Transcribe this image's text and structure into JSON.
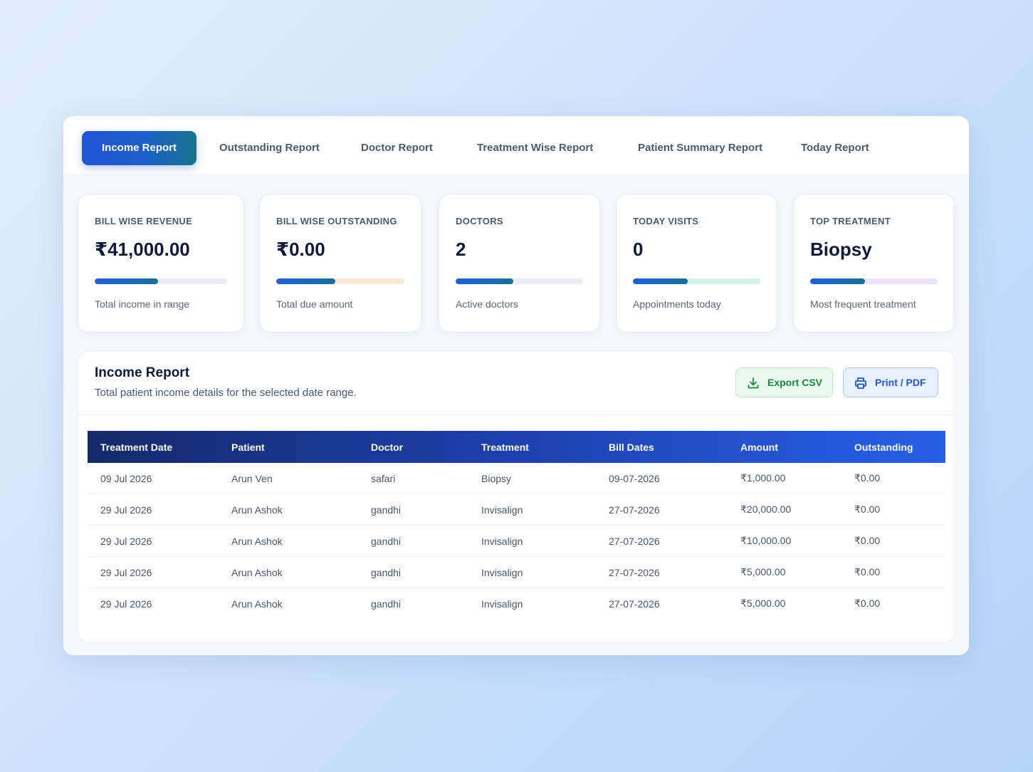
{
  "tabs": [
    {
      "label": "Income Report",
      "active": true
    },
    {
      "label": "Outstanding Report"
    },
    {
      "label": "Doctor Report"
    },
    {
      "label": "Treatment Wise Report"
    },
    {
      "label": "Patient Summary Report"
    },
    {
      "label": "Today Report"
    }
  ],
  "cards": [
    {
      "label": "BILL WISE REVENUE",
      "value": "₹41,000.00",
      "progress": 0.48,
      "track_color": "#e9edf3",
      "desc": "Total income in range"
    },
    {
      "label": "BILL WISE OUTSTANDING",
      "value": "₹0.00",
      "progress": 0.46,
      "track_color": "#fde7d6",
      "desc": "Total due amount"
    },
    {
      "label": "DOCTORS",
      "value": "2",
      "progress": 0.45,
      "track_color": "#e9edf3",
      "desc": "Active doctors"
    },
    {
      "label": "TODAY VISITS",
      "value": "0",
      "progress": 0.43,
      "track_color": "#d7f2e7",
      "desc": "Appointments today"
    },
    {
      "label": "TOP TREATMENT",
      "value": "Biopsy",
      "progress": 0.43,
      "track_color": "#efe3fb",
      "desc": "Most frequent treatment"
    }
  ],
  "report": {
    "title": "Income Report",
    "subtitle": "Total patient income details for the selected date range.",
    "export_label": "Export CSV",
    "print_label": "Print / PDF",
    "export_icon": "download-icon",
    "print_icon": "printer-icon"
  },
  "table": {
    "headers": [
      "Treatment Date",
      "Patient",
      "Doctor",
      "Treatment",
      "Bill Dates",
      "Amount",
      "Outstanding"
    ],
    "rows": [
      [
        "09 Jul 2026",
        "Arun Ven",
        "safari",
        "Biopsy",
        "09-07-2026",
        "₹1,000.00",
        "₹0.00"
      ],
      [
        "29 Jul 2026",
        "Arun Ashok",
        "gandhi",
        "Invisalign",
        "27-07-2026",
        "₹20,000.00",
        "₹0.00"
      ],
      [
        "29 Jul 2026",
        "Arun Ashok",
        "gandhi",
        "Invisalign",
        "27-07-2026",
        "₹10,000.00",
        "₹0.00"
      ],
      [
        "29 Jul 2026",
        "Arun Ashok",
        "gandhi",
        "Invisalign",
        "27-07-2026",
        "₹5,000.00",
        "₹0.00"
      ],
      [
        "29 Jul 2026",
        "Arun Ashok",
        "gandhi",
        "Invisalign",
        "27-07-2026",
        "₹5,000.00",
        "₹0.00"
      ]
    ]
  }
}
